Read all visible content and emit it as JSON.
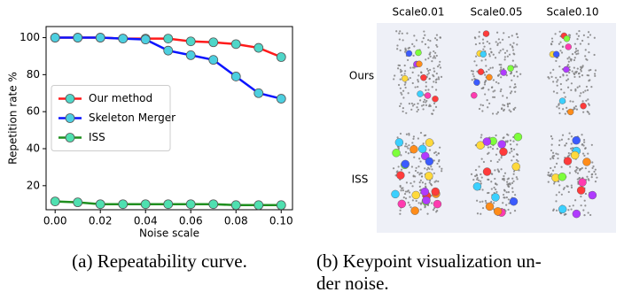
{
  "chart_data": {
    "type": "line",
    "x_label": "Noise scale",
    "y_label": "Repetition rate %",
    "x": [
      0.0,
      0.01,
      0.02,
      0.03,
      0.04,
      0.05,
      0.06,
      0.07,
      0.08,
      0.09,
      0.1
    ],
    "series": [
      {
        "name": "Our method",
        "color": "#ff1a1a",
        "marker_color": "#4fd6c8",
        "values": [
          100,
          100,
          100,
          99.5,
          99.5,
          99.5,
          98,
          97.5,
          96.5,
          94.5,
          89.5
        ]
      },
      {
        "name": "Skeleton Merger",
        "color": "#0a14ff",
        "marker_color": "#4ccfe0",
        "values": [
          100,
          100,
          100,
          99.5,
          99,
          93,
          90.5,
          88,
          79,
          70,
          67
        ]
      },
      {
        "name": "ISS",
        "color": "#1f8f1f",
        "marker_color": "#4fe0b0",
        "values": [
          11.5,
          11,
          10,
          10,
          10,
          10,
          10,
          10,
          9.5,
          9.5,
          9.5
        ]
      }
    ],
    "xlim": [
      -0.004,
      0.105
    ],
    "ylim": [
      7,
      106
    ],
    "xticks": [
      {
        "value": 0.0,
        "label": "0.00"
      },
      0.02,
      0.04,
      0.06,
      0.08,
      {
        "value": 0.1,
        "label": "0.10"
      }
    ],
    "yticks": [
      20,
      40,
      60,
      80,
      100
    ],
    "legend": "center left",
    "grid": false
  },
  "panel": {
    "columns": [
      "Scale0.01",
      "Scale0.05",
      "Scale0.10"
    ],
    "rows": [
      "Ours",
      "ISS"
    ]
  },
  "captions": {
    "a": "(a) Repeatability curve.",
    "b": [
      "(b) Keypoint visualization un-",
      "der noise."
    ]
  }
}
